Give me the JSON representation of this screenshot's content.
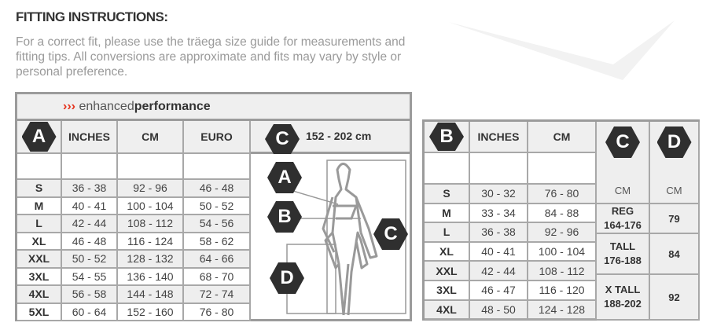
{
  "header": {
    "title": "FITTING INSTRUCTIONS:",
    "intro": "For a correct fit, please use the träega size guide for measurements and fitting tips. All conversions are approximate and fits may vary by style or personal preference."
  },
  "colors": {
    "badge": "#2f2f2f",
    "accent": "#e5321c",
    "border": "#9b9b9b",
    "row_alt": "#eeeeee"
  },
  "chest_table": {
    "brand_arrows": "›››",
    "brand_light": "enhanced",
    "brand_bold": "performance",
    "badge": "A",
    "columns": [
      "INCHES",
      "CM",
      "EURO"
    ],
    "height_badge": "C",
    "height_range": "152 - 202 cm",
    "diagram_badges": [
      "A",
      "B",
      "C",
      "D"
    ],
    "rows": [
      {
        "size": "S",
        "inches": "36 - 38",
        "cm": "92 - 96",
        "euro": "46 - 48"
      },
      {
        "size": "M",
        "inches": "40 - 41",
        "cm": "100 - 104",
        "euro": "50 - 52"
      },
      {
        "size": "L",
        "inches": "42 - 44",
        "cm": "108 - 112",
        "euro": "54 - 56"
      },
      {
        "size": "XL",
        "inches": "46 - 48",
        "cm": "116 - 124",
        "euro": "58 - 62"
      },
      {
        "size": "XXL",
        "inches": "50 - 52",
        "cm": "128 - 132",
        "euro": "64 - 66"
      },
      {
        "size": "3XL",
        "inches": "54 - 55",
        "cm": "136 - 140",
        "euro": "68 - 70"
      },
      {
        "size": "4XL",
        "inches": "56 - 58",
        "cm": "144 - 148",
        "euro": "72 - 74"
      },
      {
        "size": "5XL",
        "inches": "60 - 64",
        "cm": "152 - 160",
        "euro": "76 - 80"
      }
    ]
  },
  "waist_table": {
    "badge": "B",
    "columns": [
      "INCHES",
      "CM"
    ],
    "rows": [
      {
        "size": "S",
        "inches": "30 - 32",
        "cm": "76 - 80"
      },
      {
        "size": "M",
        "inches": "33 - 34",
        "cm": "84 - 88"
      },
      {
        "size": "L",
        "inches": "36 - 38",
        "cm": "92 - 96"
      },
      {
        "size": "XL",
        "inches": "40 - 41",
        "cm": "100 - 104"
      },
      {
        "size": "XXL",
        "inches": "42 - 44",
        "cm": "108 - 112"
      },
      {
        "size": "3XL",
        "inches": "46 - 47",
        "cm": "116 - 120"
      },
      {
        "size": "4XL",
        "inches": "48 - 50",
        "cm": "124 - 128"
      }
    ],
    "height_badge": "C",
    "inseam_badge": "D",
    "height_unit": "CM",
    "inseam_unit": "CM",
    "lengths": [
      {
        "name": "REG",
        "range": "164-176",
        "inseam": "79"
      },
      {
        "name": "TALL",
        "range": "176-188",
        "inseam": "84"
      },
      {
        "name": "X TALL",
        "range": "188-202",
        "inseam": "92"
      }
    ]
  }
}
